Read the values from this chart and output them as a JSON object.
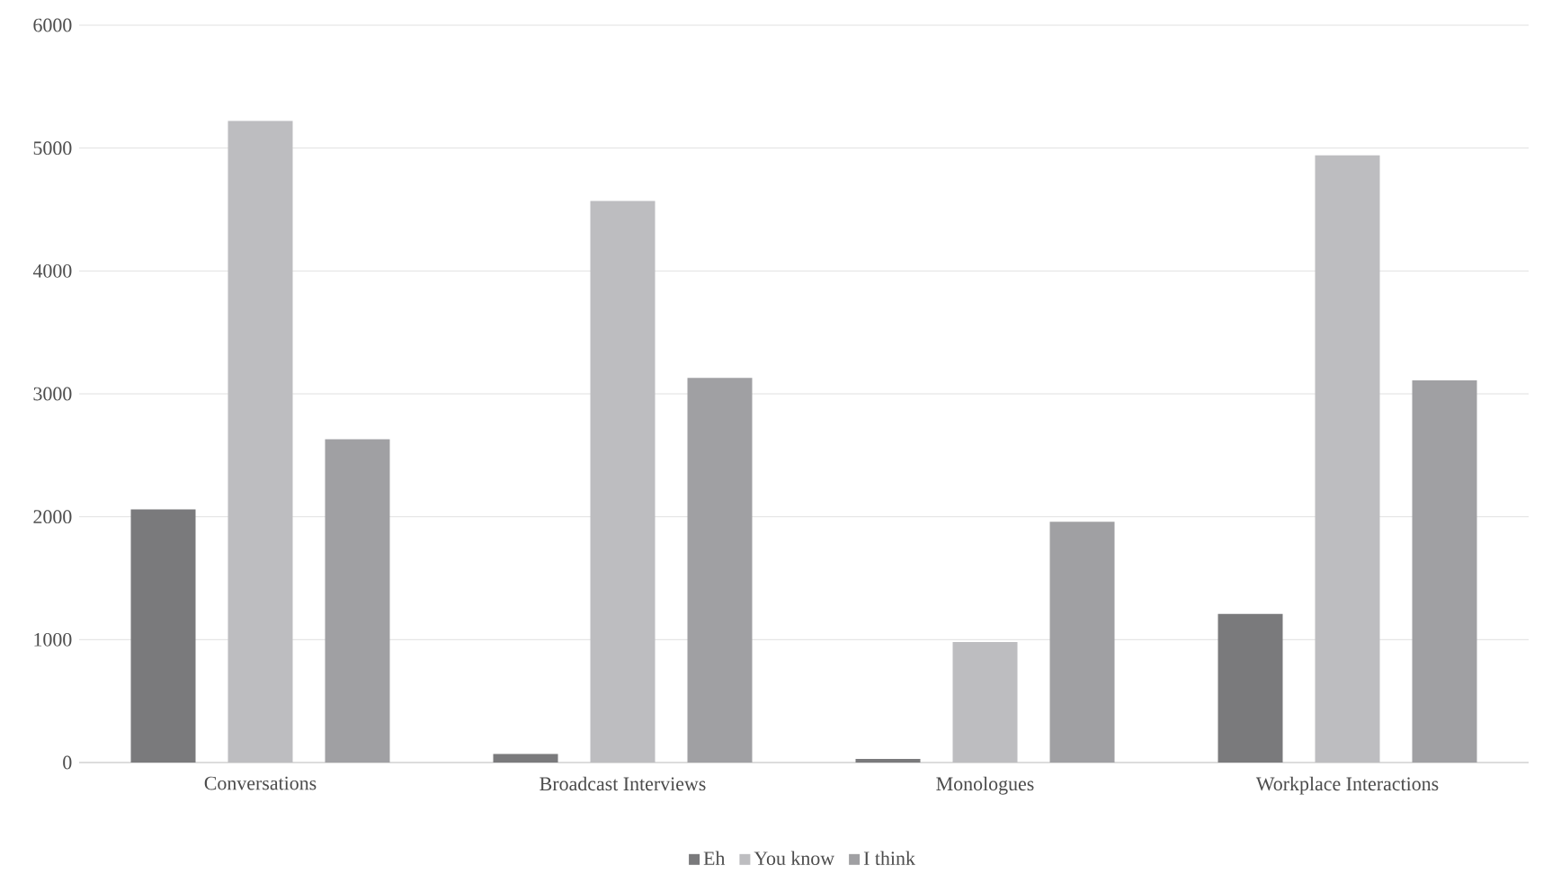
{
  "chart_data": {
    "type": "bar",
    "categories": [
      "Conversations",
      "Broadcast Interviews",
      "Monologues",
      "Workplace Interactions"
    ],
    "series": [
      {
        "name": "Eh",
        "color": "#7a7a7c",
        "values": [
          2060,
          70,
          30,
          1210
        ]
      },
      {
        "name": "You know",
        "color": "#bdbdc0",
        "values": [
          5220,
          4570,
          980,
          4940
        ]
      },
      {
        "name": "I think",
        "color": "#a0a0a3",
        "values": [
          2630,
          3130,
          1960,
          3110
        ]
      }
    ],
    "ylim": [
      0,
      6000
    ],
    "yticks": [
      0,
      1000,
      2000,
      3000,
      4000,
      5000,
      6000
    ],
    "grid": "y",
    "legend": "bottom"
  }
}
